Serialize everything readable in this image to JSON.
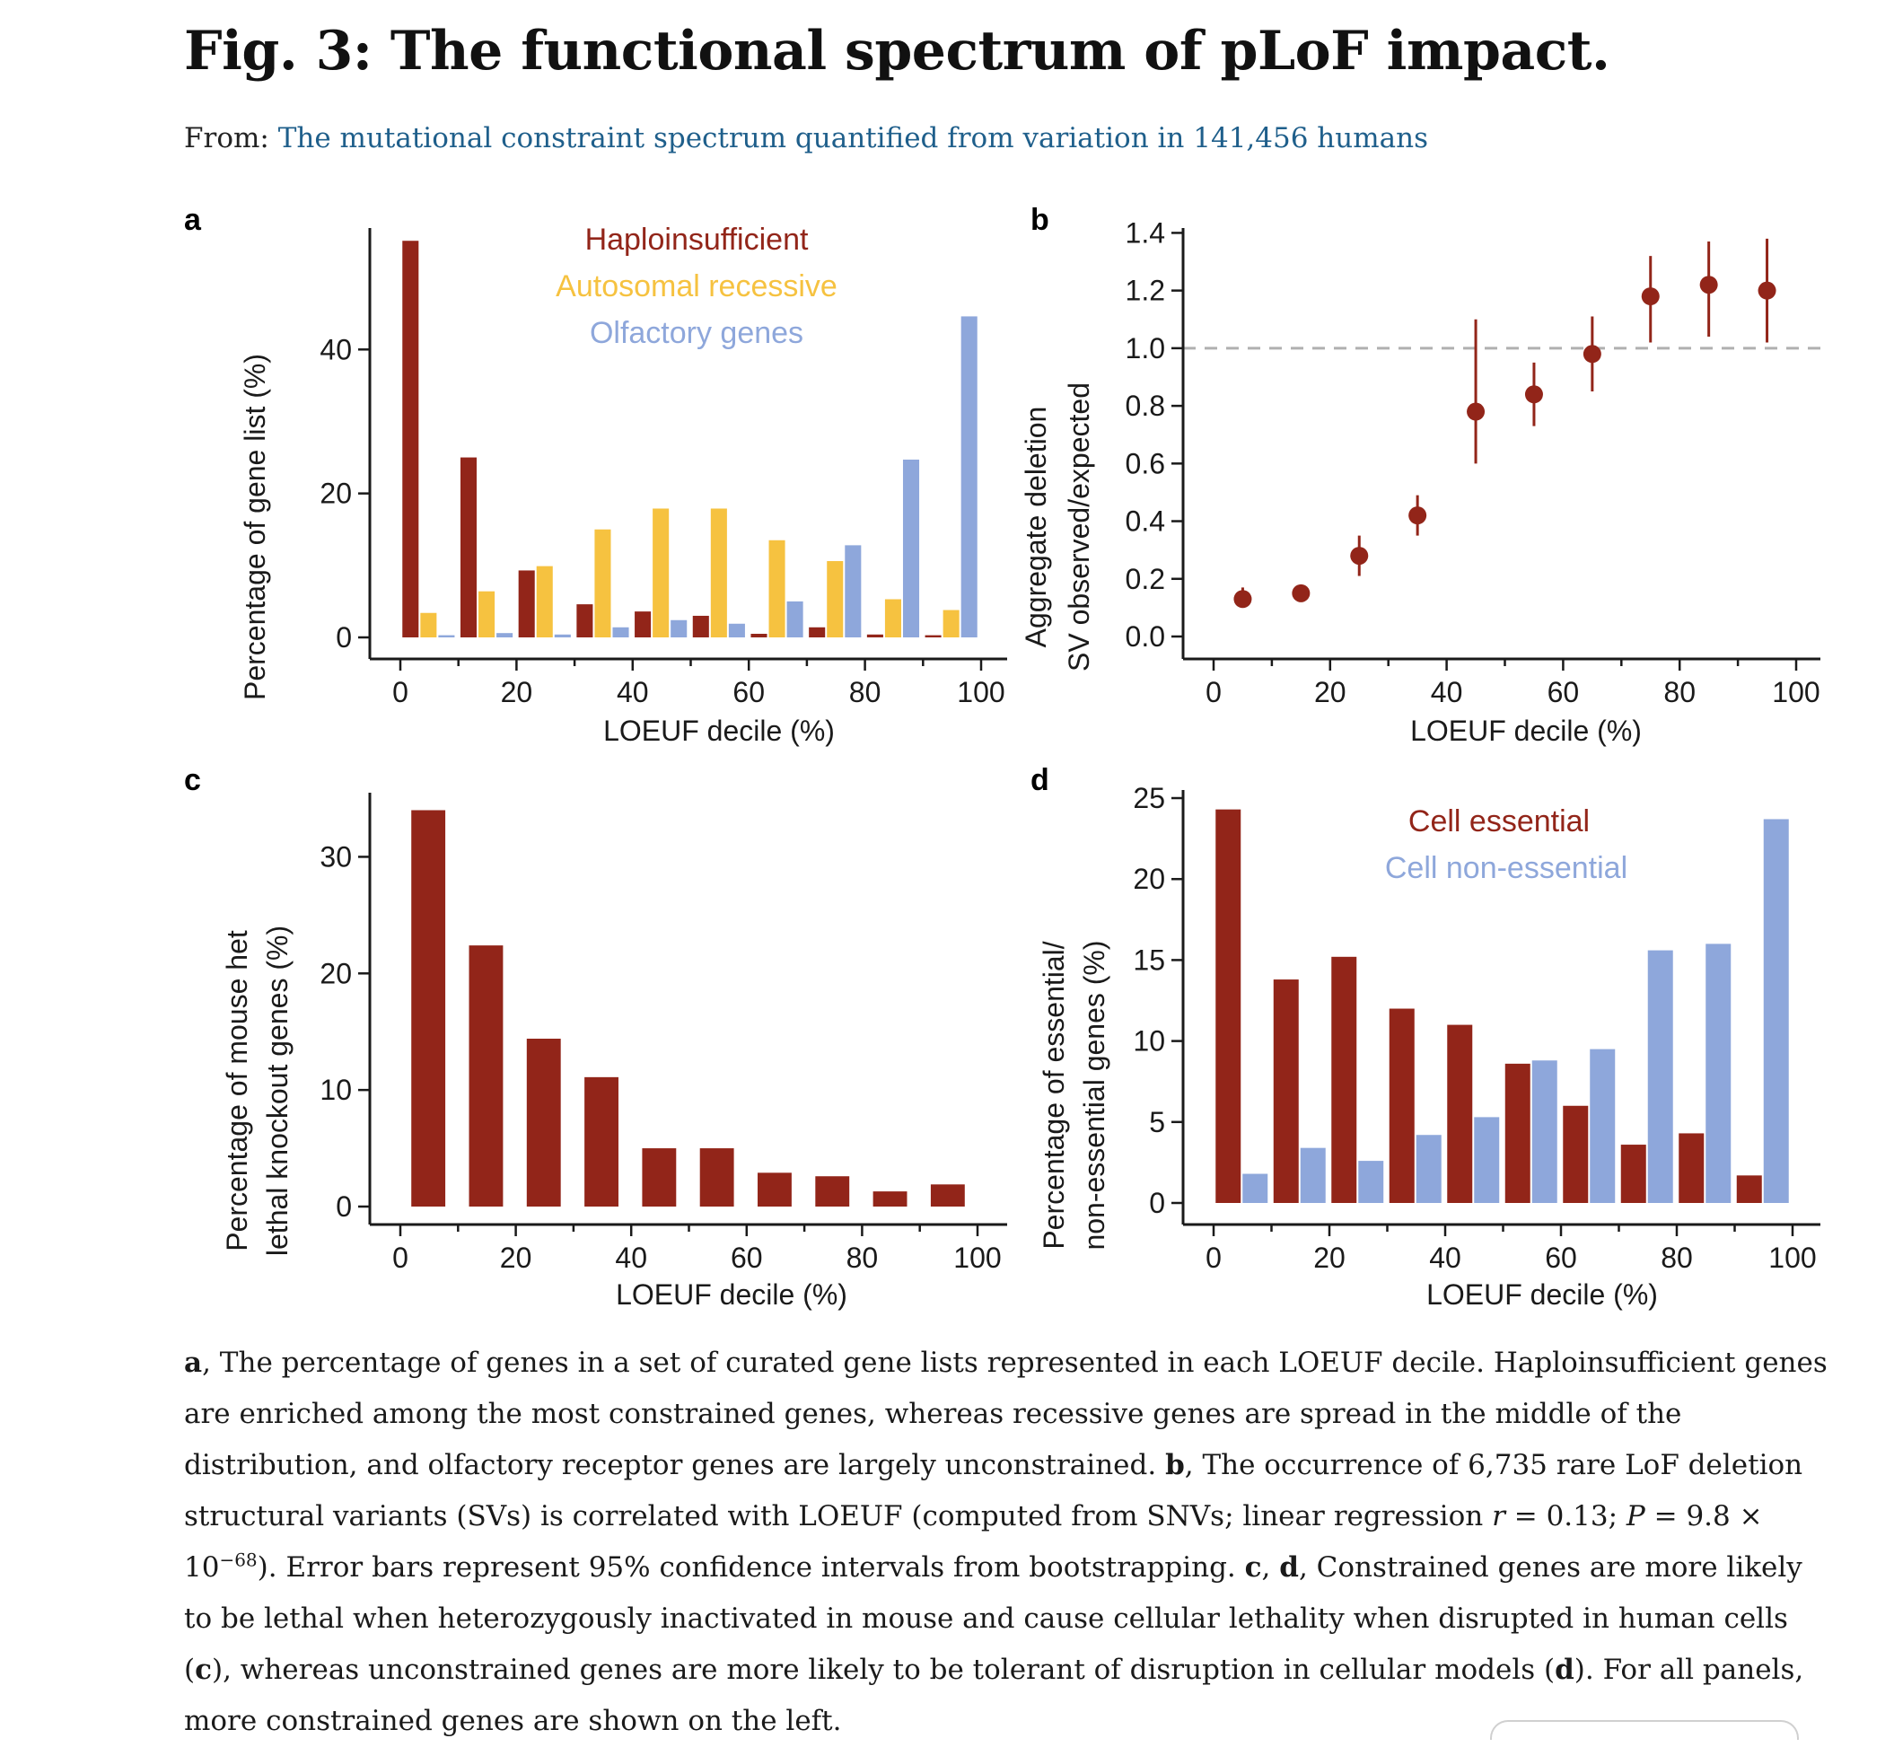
{
  "header": {
    "title": "Fig. 3: The functional spectrum of pLoF impact.",
    "from_label": "From:",
    "from_link": "The mutational constraint spectrum quantified from variation in 141,456 humans"
  },
  "colors": {
    "red": "#922519",
    "yellow": "#f6c240",
    "blue": "#8ea7db",
    "grey_dash": "#b0b0b0"
  },
  "chart_data": [
    {
      "panel": "a",
      "type": "bar",
      "xlabel": "LOEUF decile (%)",
      "ylabel": "Percentage of gene list (%)",
      "xlim": [
        0,
        100
      ],
      "ylim": [
        0,
        57
      ],
      "xticks": [
        "0",
        "20",
        "40",
        "60",
        "80",
        "100"
      ],
      "yticks": [
        "0",
        "20",
        "40"
      ],
      "x": [
        5,
        15,
        25,
        35,
        45,
        55,
        65,
        75,
        85,
        95
      ],
      "series": [
        {
          "name": "Haploinsufficient",
          "color": "#922519",
          "values": [
            55.1,
            25.0,
            9.3,
            4.6,
            3.6,
            3.0,
            0.5,
            1.4,
            0.4,
            0.3
          ]
        },
        {
          "name": "Autosomal recessive",
          "color": "#f6c240",
          "values": [
            3.4,
            6.4,
            9.9,
            15.0,
            17.9,
            17.9,
            13.5,
            10.6,
            5.3,
            3.8
          ]
        },
        {
          "name": "Olfactory genes",
          "color": "#8ea7db",
          "values": [
            0.3,
            0.6,
            0.4,
            1.4,
            2.4,
            1.9,
            5.0,
            12.8,
            24.7,
            44.6
          ]
        }
      ]
    },
    {
      "panel": "b",
      "type": "scatter",
      "xlabel": "LOEUF decile (%)",
      "ylabel": [
        "Aggregate deletion",
        "SV observed/expected"
      ],
      "xlim": [
        0,
        100
      ],
      "ylim": [
        0,
        1.42
      ],
      "xticks": [
        "0",
        "20",
        "40",
        "60",
        "80",
        "100"
      ],
      "yticks": [
        "0.0",
        "0.2",
        "0.4",
        "0.6",
        "0.8",
        "1.0",
        "1.2",
        "1.4"
      ],
      "reference_line": 1.0,
      "x": [
        5,
        15,
        25,
        35,
        45,
        55,
        65,
        75,
        85,
        95
      ],
      "y": [
        0.13,
        0.15,
        0.28,
        0.42,
        0.78,
        0.84,
        0.98,
        1.18,
        1.22,
        1.2
      ],
      "ci_low": [
        0.1,
        0.12,
        0.21,
        0.35,
        0.6,
        0.73,
        0.85,
        1.02,
        1.04,
        1.02
      ],
      "ci_high": [
        0.17,
        0.18,
        0.35,
        0.49,
        1.1,
        0.95,
        1.11,
        1.32,
        1.37,
        1.38
      ]
    },
    {
      "panel": "c",
      "type": "bar",
      "xlabel": "LOEUF decile (%)",
      "ylabel": [
        "Percentage of mouse het",
        "lethal knockout genes (%)"
      ],
      "xlim": [
        0,
        100
      ],
      "ylim": [
        0,
        35.5
      ],
      "xticks": [
        "0",
        "20",
        "40",
        "60",
        "80",
        "100"
      ],
      "yticks": [
        "0",
        "10",
        "20",
        "30"
      ],
      "x": [
        5,
        15,
        25,
        35,
        45,
        55,
        65,
        75,
        85,
        95
      ],
      "series": [
        {
          "color": "#922519",
          "values": [
            34.0,
            22.4,
            14.4,
            11.1,
            5.0,
            5.0,
            2.9,
            2.6,
            1.3,
            1.9
          ]
        }
      ]
    },
    {
      "panel": "d",
      "type": "bar",
      "xlabel": "LOEUF decile (%)",
      "ylabel": [
        "Percentage of essential/",
        "non-essential genes (%)"
      ],
      "xlim": [
        0,
        100
      ],
      "ylim": [
        0,
        25.5
      ],
      "xticks": [
        "0",
        "20",
        "40",
        "60",
        "80",
        "100"
      ],
      "yticks": [
        "0",
        "5",
        "10",
        "15",
        "20",
        "25"
      ],
      "x": [
        5,
        15,
        25,
        35,
        45,
        55,
        65,
        75,
        85,
        95
      ],
      "series": [
        {
          "name": "Cell essential",
          "color": "#922519",
          "values": [
            24.3,
            13.8,
            15.2,
            12.0,
            11.0,
            8.6,
            6.0,
            3.6,
            4.3,
            1.7
          ]
        },
        {
          "name": "Cell non-essential",
          "color": "#8ea7db",
          "values": [
            1.8,
            3.4,
            2.6,
            4.2,
            5.3,
            8.8,
            9.5,
            15.6,
            16.0,
            23.7
          ]
        }
      ]
    }
  ],
  "caption": {
    "a_label": "a",
    "a_text": ", The percentage of genes in a set of curated gene lists represented in each LOEUF decile. Haploinsufficient genes are enriched among the most constrained genes, whereas recessive genes are spread in the middle of the distribution, and olfactory receptor genes are largely unconstrained. ",
    "b_label": "b",
    "b_text1": ", The occurrence of 6,735 rare LoF deletion structural variants (SVs) is correlated with LOEUF (computed from SNVs; linear regression ",
    "r_var": "r",
    "b_text2": " = 0.13; ",
    "p_var": "P",
    "b_text3": " = 9.8 × 10",
    "b_exp": "−68",
    "b_text4": "). Error bars represent 95% confidence intervals from bootstrapping. ",
    "c_label": "c",
    "comma_sep": ", ",
    "d_label": "d",
    "cd_text1": ", Constrained genes are more likely to be lethal when heterozygously inactivated in mouse and cause cellular lethality when disrupted in human cells (",
    "c_ref": "c",
    "cd_text2": "), whereas unconstrained genes are more likely to be tolerant of disruption in cellular models (",
    "d_ref": "d",
    "cd_text3": "). For all panels, more constrained genes are shown on the left."
  }
}
